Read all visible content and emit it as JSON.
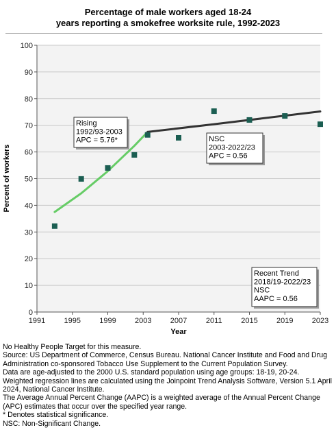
{
  "chart_data": {
    "type": "scatter",
    "title_lines": [
      "Percentage of male workers aged 18-24",
      "years reporting a smokefree worksite rule, 1992-2023"
    ],
    "xlabel": "Year",
    "ylabel": "Percent of workers",
    "xlim": [
      1991,
      2023
    ],
    "ylim": [
      0,
      100
    ],
    "x_ticks": [
      1991,
      1995,
      1999,
      2003,
      2007,
      2011,
      2015,
      2019,
      2023
    ],
    "y_ticks": [
      0,
      10,
      20,
      30,
      40,
      50,
      60,
      70,
      80,
      90,
      100
    ],
    "grid": "horizontal",
    "series": [
      {
        "kind": "points",
        "color": "#1b5e52",
        "points": [
          {
            "x": 1993,
            "y": 32.2
          },
          {
            "x": 1996,
            "y": 49.9
          },
          {
            "x": 1999,
            "y": 54.0
          },
          {
            "x": 2002,
            "y": 58.9
          },
          {
            "x": 2003.5,
            "y": 66.4
          },
          {
            "x": 2007,
            "y": 65.3
          },
          {
            "x": 2011,
            "y": 75.3
          },
          {
            "x": 2015,
            "y": 72.0
          },
          {
            "x": 2019,
            "y": 73.5
          },
          {
            "x": 2023,
            "y": 70.4
          }
        ]
      },
      {
        "kind": "trend",
        "color": "#66cc66",
        "points": [
          {
            "x": 1993,
            "y": 37.5
          },
          {
            "x": 1996,
            "y": 44.5
          },
          {
            "x": 1999,
            "y": 52.8
          },
          {
            "x": 2002,
            "y": 62.3
          },
          {
            "x": 2003.5,
            "y": 67.5
          }
        ]
      },
      {
        "kind": "trend",
        "color": "#333333",
        "points": [
          {
            "x": 2003.5,
            "y": 67.5
          },
          {
            "x": 2011,
            "y": 70.4
          },
          {
            "x": 2023,
            "y": 75.2
          }
        ]
      }
    ],
    "annotations": [
      {
        "lines": [
          "Rising",
          "1992/93-2003",
          "APC =  5.76*"
        ]
      },
      {
        "lines": [
          "NSC",
          "2003-2022/23",
          "APC =  0.56"
        ]
      },
      {
        "lines": [
          "Recent Trend",
          "2018/19-2022/23",
          "NSC",
          "AAPC =  0.56"
        ]
      }
    ]
  },
  "notes": [
    "No Healthy People Target for this measure.",
    "Source: US Department of Commerce, Census Bureau. National Cancer Institute and Food and Drug Administration co-sponsored Tobacco Use Supplement to the Current Population Survey.",
    "Data are age-adjusted to the 2000 U.S. standard population using age groups: 18-19, 20-24.",
    "Weighted regression lines are calculated using the Joinpoint Trend Analysis Software, Version 5.1 April 2024, National Cancer Institute.",
    "The Average Annual Percent Change (AAPC) is a weighted average of the Annual Percent Change (APC) estimates that occur over the specified year range.",
    "* Denotes statistical significance.",
    "NSC: Non-Significant Change."
  ]
}
